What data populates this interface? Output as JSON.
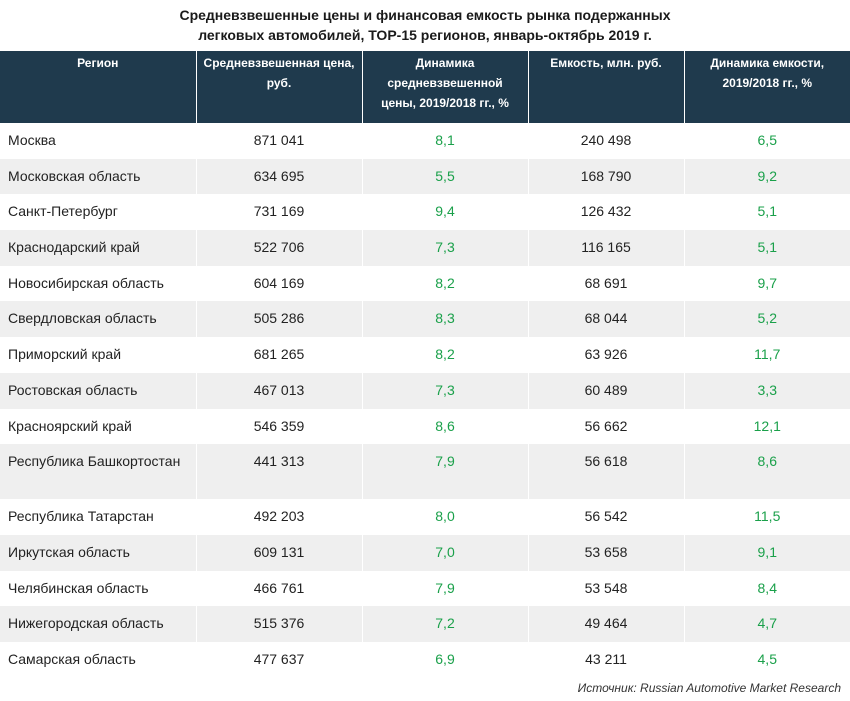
{
  "title_line1": "Средневзвешенные цены и финансовая емкость рынка подержанных",
  "title_line2": "легковых автомобилей, ТОР-15 регионов, январь-октябрь 2019 г.",
  "headers": [
    "Регион",
    "Средневзвешенная цена, руб.",
    "Динамика средневзвешенной цены, 2019/2018 гг., %",
    "Емкость, млн. руб.",
    "Динамика емкости, 2019/2018 гг., %"
  ],
  "rows": [
    [
      "Москва",
      "871 041",
      "8,1",
      "240 498",
      "6,5"
    ],
    [
      "Московская область",
      "634 695",
      "5,5",
      "168 790",
      "9,2"
    ],
    [
      "Санкт-Петербург",
      "731 169",
      "9,4",
      "126 432",
      "5,1"
    ],
    [
      "Краснодарский край",
      "522 706",
      "7,3",
      "116 165",
      "5,1"
    ],
    [
      "Новосибирская область",
      "604 169",
      "8,2",
      "68 691",
      "9,7"
    ],
    [
      "Свердловская область",
      "505 286",
      "8,3",
      "68 044",
      "5,2"
    ],
    [
      "Приморский край",
      "681 265",
      "8,2",
      "63 926",
      "11,7"
    ],
    [
      "Ростовская область",
      "467 013",
      "7,3",
      "60 489",
      "3,3"
    ],
    [
      "Красноярский край",
      "546 359",
      "8,6",
      "56 662",
      "12,1"
    ],
    [
      "Республика Башкортостан",
      "441 313",
      "7,9",
      "56 618",
      "8,6"
    ],
    [
      "Республика Татарстан",
      "492 203",
      "8,0",
      "56 542",
      "11,5"
    ],
    [
      "Иркутская область",
      "609 131",
      "7,0",
      "53 658",
      "9,1"
    ],
    [
      "Челябинская область",
      "466 761",
      "7,9",
      "53 548",
      "8,4"
    ],
    [
      "Нижегородская область",
      "515 376",
      "7,2",
      "49 464",
      "4,7"
    ],
    [
      "Самарская область",
      "477 637",
      "6,9",
      "43 211",
      "4,5"
    ]
  ],
  "source": "Источник: Russian Automotive Market Research",
  "colors": {
    "header_bg": "#1f3a4d",
    "positive": "#1aa04a",
    "stripe": "#efefef"
  }
}
